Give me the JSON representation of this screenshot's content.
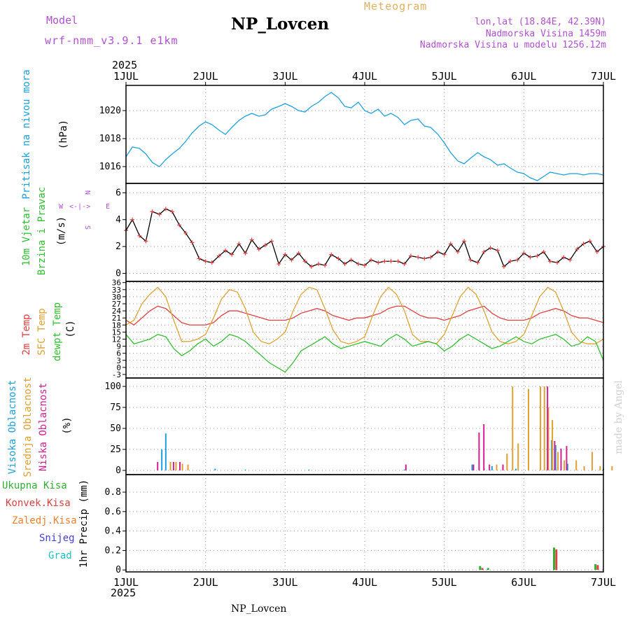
{
  "header": {
    "model_label": "Model",
    "model_name": "wrf-nmm_v3.9.1 e1km",
    "title": "NP_Lovcen",
    "subtitle": "Meteogram",
    "lonlat": "lon,lat (18.84E, 42.39N)",
    "elevation": "Nadmorska Visina 1459m",
    "elevation_model": "Nadmorska Visina u modelu 1256.12m",
    "year_top": "2025",
    "year_bottom": "2025",
    "footer": "NP_Lovcen",
    "credit": "made by Angel"
  },
  "colors": {
    "pressure": "#1ea0e0",
    "temp2m": "#e04040",
    "sfc_temp": "#e0a030",
    "dewpt": "#30c030",
    "high_cloud": "#1ea0e0",
    "mid_cloud": "#e0a030",
    "low_cloud": "#d02090",
    "total_precip": "#30b030",
    "conv_precip": "#e04040",
    "frozen_precip": "#f08030",
    "snow": "#4040e0",
    "hail": "#20c0c0",
    "model_purple": "#b050d0",
    "meteogram": "#e0b060"
  },
  "chart_data": [
    {
      "type": "line",
      "panel": "pressure",
      "ylabel": "Pritisak na nivou mora",
      "unit": "(hPa)",
      "x_ticks": [
        "1JUL",
        "2JUL",
        "3JUL",
        "4JUL",
        "5JUL",
        "6JUL",
        "7JUL"
      ],
      "x_range_days": [
        0,
        6
      ],
      "yticks": [
        1016,
        1018,
        1020
      ],
      "ylim": [
        1014.8,
        1021.8
      ],
      "grid": true,
      "series": [
        {
          "name": "Pritisak na nivou mora",
          "x": [
            0,
            0.08,
            0.17,
            0.25,
            0.33,
            0.42,
            0.5,
            0.58,
            0.67,
            0.75,
            0.83,
            0.92,
            1.0,
            1.08,
            1.17,
            1.25,
            1.33,
            1.42,
            1.5,
            1.58,
            1.67,
            1.75,
            1.83,
            1.92,
            2.0,
            2.08,
            2.17,
            2.25,
            2.33,
            2.42,
            2.5,
            2.58,
            2.67,
            2.75,
            2.83,
            2.92,
            3.0,
            3.08,
            3.17,
            3.25,
            3.33,
            3.42,
            3.5,
            3.58,
            3.67,
            3.75,
            3.83,
            3.92,
            4.0,
            4.08,
            4.17,
            4.25,
            4.33,
            4.42,
            4.5,
            4.58,
            4.67,
            4.75,
            4.83,
            4.92,
            5.0,
            5.08,
            5.17,
            5.25,
            5.33,
            5.42,
            5.5,
            5.58,
            5.67,
            5.75,
            5.83,
            5.92,
            6.0
          ],
          "values": [
            1016.7,
            1017.4,
            1017.3,
            1016.9,
            1016.3,
            1016.0,
            1016.5,
            1016.9,
            1017.3,
            1017.8,
            1018.4,
            1018.9,
            1019.2,
            1019.0,
            1018.6,
            1018.3,
            1018.8,
            1019.3,
            1019.6,
            1019.8,
            1019.6,
            1019.7,
            1020.1,
            1020.3,
            1020.5,
            1020.3,
            1020.0,
            1019.9,
            1020.3,
            1020.6,
            1021.0,
            1021.3,
            1020.9,
            1020.3,
            1020.2,
            1020.6,
            1020.0,
            1019.8,
            1020.1,
            1019.6,
            1019.8,
            1019.5,
            1019.0,
            1019.3,
            1019.4,
            1018.9,
            1018.8,
            1018.3,
            1017.7,
            1017.0,
            1016.4,
            1016.2,
            1016.6,
            1017.0,
            1016.7,
            1016.5,
            1016.1,
            1016.2,
            1015.9,
            1015.6,
            1015.5,
            1015.2,
            1015.0,
            1015.3,
            1015.6,
            1015.5,
            1015.4,
            1015.5,
            1015.5,
            1015.4,
            1015.5,
            1015.5,
            1015.4
          ]
        }
      ]
    },
    {
      "type": "line",
      "panel": "wind",
      "ylabel": "10m Vjetar",
      "ylabel2": "Brzina i Pravac",
      "unit": "(m/s)",
      "compass": {
        "north": "N",
        "west": "W",
        "east": "E",
        "south": "S"
      },
      "yticks": [
        0,
        2,
        4,
        6
      ],
      "ylim": [
        -0.6,
        6.7
      ],
      "grid": true,
      "series": [
        {
          "name": "Brzina",
          "x": [
            0,
            0.08,
            0.17,
            0.25,
            0.33,
            0.42,
            0.5,
            0.58,
            0.67,
            0.75,
            0.83,
            0.92,
            1.0,
            1.08,
            1.17,
            1.25,
            1.33,
            1.42,
            1.5,
            1.58,
            1.67,
            1.75,
            1.83,
            1.92,
            2.0,
            2.08,
            2.17,
            2.25,
            2.33,
            2.42,
            2.5,
            2.58,
            2.67,
            2.75,
            2.83,
            2.92,
            3.0,
            3.08,
            3.17,
            3.25,
            3.33,
            3.42,
            3.5,
            3.58,
            3.67,
            3.75,
            3.83,
            3.92,
            4.0,
            4.08,
            4.17,
            4.25,
            4.33,
            4.42,
            4.5,
            4.58,
            4.67,
            4.75,
            4.83,
            4.92,
            5.0,
            5.08,
            5.17,
            5.25,
            5.33,
            5.42,
            5.5,
            5.58,
            5.67,
            5.75,
            5.83,
            5.92,
            6.0
          ],
          "values": [
            3.2,
            4.0,
            2.8,
            2.4,
            4.6,
            4.4,
            4.8,
            4.6,
            3.6,
            3.0,
            2.3,
            1.1,
            0.9,
            0.8,
            1.3,
            1.7,
            1.4,
            2.2,
            1.5,
            2.5,
            1.8,
            2.1,
            2.4,
            0.7,
            1.4,
            1.0,
            1.5,
            0.9,
            0.5,
            0.7,
            0.6,
            1.4,
            1.1,
            0.7,
            1.0,
            0.7,
            0.6,
            1.0,
            0.8,
            0.9,
            0.9,
            0.9,
            0.7,
            1.3,
            1.2,
            1.1,
            1.2,
            1.6,
            1.4,
            2.2,
            1.6,
            2.4,
            1.0,
            0.8,
            1.6,
            1.9,
            1.7,
            0.5,
            0.9,
            1.0,
            1.5,
            1.2,
            1.3,
            1.6,
            0.9,
            0.8,
            1.2,
            1.0,
            1.8,
            2.2,
            2.4,
            1.6,
            2.0
          ]
        }
      ]
    },
    {
      "type": "line",
      "panel": "temperature",
      "ylabel": "2m Temp",
      "ylabel2": "SFC Temp",
      "ylabel3": "dewpt Temp",
      "unit": "(C)",
      "yticks": [
        -3,
        0,
        3,
        6,
        9,
        12,
        15,
        18,
        21,
        24,
        27,
        30,
        33,
        36
      ],
      "ylim": [
        -4.5,
        36.5
      ],
      "grid": true,
      "series": [
        {
          "name": "2m Temp",
          "x": [
            0,
            0.1,
            0.2,
            0.3,
            0.4,
            0.5,
            0.6,
            0.7,
            0.8,
            0.9,
            1.0,
            1.1,
            1.2,
            1.3,
            1.4,
            1.5,
            1.6,
            1.7,
            1.8,
            1.9,
            2.0,
            2.1,
            2.2,
            2.3,
            2.4,
            2.5,
            2.6,
            2.7,
            2.8,
            2.9,
            3.0,
            3.1,
            3.2,
            3.3,
            3.4,
            3.5,
            3.6,
            3.7,
            3.8,
            3.9,
            4.0,
            4.1,
            4.2,
            4.3,
            4.4,
            4.5,
            4.6,
            4.7,
            4.8,
            4.9,
            5.0,
            5.1,
            5.2,
            5.3,
            5.4,
            5.5,
            5.6,
            5.7,
            5.8,
            5.9,
            6.0
          ],
          "values": [
            20,
            18,
            21,
            24,
            26,
            25,
            22,
            19,
            18,
            18,
            18,
            19,
            22,
            24,
            24,
            23,
            22,
            21,
            20,
            20,
            20,
            21,
            23,
            24,
            25,
            24,
            22,
            21,
            20,
            21,
            21,
            22,
            23,
            25,
            26,
            26,
            24,
            22,
            21,
            21,
            20,
            21,
            22,
            24,
            25,
            26,
            23,
            21,
            20,
            20,
            20,
            21,
            23,
            24,
            25,
            24,
            22,
            21,
            21,
            20,
            19
          ]
        },
        {
          "name": "SFC Temp",
          "x": [
            0,
            0.1,
            0.2,
            0.3,
            0.4,
            0.5,
            0.6,
            0.7,
            0.8,
            0.9,
            1.0,
            1.1,
            1.2,
            1.3,
            1.4,
            1.5,
            1.6,
            1.7,
            1.8,
            1.9,
            2.0,
            2.1,
            2.2,
            2.3,
            2.4,
            2.5,
            2.6,
            2.7,
            2.8,
            2.9,
            3.0,
            3.1,
            3.2,
            3.3,
            3.4,
            3.5,
            3.6,
            3.7,
            3.8,
            3.9,
            4.0,
            4.1,
            4.2,
            4.3,
            4.4,
            4.5,
            4.6,
            4.7,
            4.8,
            4.9,
            5.0,
            5.1,
            5.2,
            5.3,
            5.4,
            5.5,
            5.6,
            5.7,
            5.8,
            5.9,
            6.0
          ],
          "values": [
            18,
            20,
            27,
            31,
            34,
            30,
            20,
            11,
            11,
            12,
            14,
            21,
            29,
            33,
            32,
            25,
            15,
            11,
            10,
            12,
            15,
            24,
            31,
            34,
            33,
            25,
            16,
            11,
            10,
            11,
            13,
            22,
            30,
            34,
            31,
            24,
            14,
            11,
            11,
            10,
            14,
            22,
            30,
            34,
            31,
            24,
            15,
            11,
            10,
            11,
            14,
            22,
            30,
            34,
            32,
            24,
            15,
            11,
            10,
            10,
            12
          ]
        },
        {
          "name": "dewpt Temp",
          "x": [
            0,
            0.1,
            0.2,
            0.3,
            0.4,
            0.5,
            0.6,
            0.7,
            0.8,
            0.9,
            1.0,
            1.1,
            1.2,
            1.3,
            1.4,
            1.5,
            1.6,
            1.7,
            1.8,
            1.9,
            2.0,
            2.1,
            2.2,
            2.3,
            2.4,
            2.5,
            2.6,
            2.7,
            2.8,
            2.9,
            3.0,
            3.1,
            3.2,
            3.3,
            3.4,
            3.5,
            3.6,
            3.7,
            3.8,
            3.9,
            4.0,
            4.1,
            4.2,
            4.3,
            4.4,
            4.5,
            4.6,
            4.7,
            4.8,
            4.9,
            5.0,
            5.1,
            5.2,
            5.3,
            5.4,
            5.5,
            5.6,
            5.7,
            5.8,
            5.9,
            6.0
          ],
          "values": [
            14,
            10,
            11,
            12,
            14,
            13,
            8,
            5,
            7,
            10,
            12,
            9,
            11,
            14,
            13,
            11,
            8,
            5,
            2,
            0,
            -2,
            2,
            7,
            9,
            11,
            13,
            10,
            8,
            9,
            10,
            11,
            10,
            9,
            12,
            14,
            12,
            9,
            10,
            11,
            10,
            7,
            9,
            12,
            14,
            12,
            10,
            8,
            9,
            11,
            13,
            11,
            10,
            12,
            13,
            14,
            12,
            9,
            10,
            13,
            11,
            3
          ]
        }
      ]
    },
    {
      "type": "bar",
      "panel": "cloud",
      "ylabel": "Visoka Oblacnost",
      "ylabel2": "Srednja Oblacnost",
      "ylabel3": "Niska Oblacnost",
      "unit": "(%)",
      "yticks": [
        0,
        25,
        50,
        75,
        100
      ],
      "ylim": [
        -5,
        110
      ],
      "grid": true,
      "series": [
        {
          "name": "Visoka Oblacnost",
          "x": [
            0.45,
            0.5,
            1.12,
            1.5,
            2.3,
            3.5,
            4.35,
            4.5,
            4.6,
            4.9,
            5.35,
            5.4,
            5.55,
            6.0,
            6.4
          ],
          "values": [
            25,
            44,
            2,
            1,
            1,
            1,
            7,
            3,
            5,
            2,
            36,
            30,
            8,
            2,
            18
          ]
        },
        {
          "name": "Srednja Oblacnost",
          "x": [
            0.55,
            0.62,
            0.7,
            0.77,
            4.65,
            4.78,
            4.85,
            4.92,
            5.05,
            5.2,
            5.25,
            5.3,
            5.35,
            5.42,
            5.5,
            5.65,
            5.75,
            5.85,
            5.95,
            6.1,
            6.4,
            6.5,
            6.58
          ],
          "values": [
            10,
            10,
            8,
            7,
            7,
            20,
            100,
            32,
            97,
            100,
            100,
            75,
            60,
            22,
            12,
            12,
            5,
            22,
            5,
            5,
            10,
            8,
            7
          ]
        },
        {
          "name": "Niska Oblacnost",
          "x": [
            0.38,
            0.58,
            0.66,
            3.5,
            4.35,
            4.42,
            4.48,
            4.55,
            4.72,
            5.28,
            5.37,
            5.45,
            5.52,
            6.4,
            6.46,
            6.52
          ],
          "values": [
            10,
            10,
            10,
            7,
            7,
            45,
            55,
            7,
            7,
            100,
            35,
            26,
            29,
            7,
            82,
            52
          ]
        }
      ]
    },
    {
      "type": "bar",
      "panel": "precip",
      "ylabel": "1hr Precip (mm)",
      "legend": [
        "Ukupna Kisa",
        "Konvek.Kisa",
        "Zaledj.Kisa",
        "Snijeg",
        "Grad"
      ],
      "yticks": [
        0,
        0.2,
        0.4,
        0.6,
        0.8
      ],
      "ylim": [
        -0.02,
        0.98
      ],
      "grid": true,
      "series": [
        {
          "name": "Ukupna Kisa",
          "x": [
            4.45,
            4.55,
            5.38,
            5.9,
            6.5
          ],
          "values": [
            0.04,
            0.02,
            0.23,
            0.06,
            0.14
          ]
        },
        {
          "name": "Konvek.Kisa",
          "x": [
            4.47,
            5.4,
            5.92,
            6.45
          ],
          "values": [
            0.02,
            0.21,
            0.05,
            0.05
          ]
        }
      ]
    }
  ]
}
